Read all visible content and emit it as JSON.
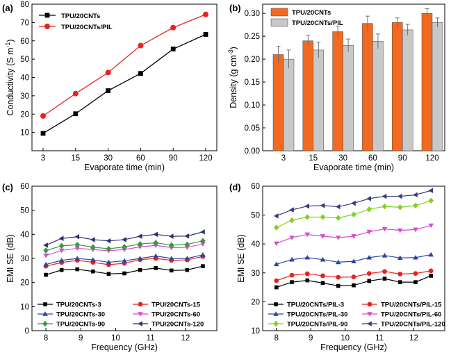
{
  "chart_data": [
    {
      "id": "a",
      "panel_label": "(a)",
      "type": "line",
      "categories": [
        "3",
        "15",
        "30",
        "60",
        "90",
        "120"
      ],
      "xlabel": "Evaporate time (min)",
      "ylabel": "Conductivity (S m",
      "ylabel_sup": "-1",
      "ylim": [
        0,
        80
      ],
      "yticks": [
        10,
        20,
        30,
        40,
        50,
        60,
        70,
        80
      ],
      "legend_position": "top-left",
      "series": [
        {
          "name": "TPU/20CNTs",
          "marker": "square",
          "color": "#000000",
          "values": [
            9.5,
            20.2,
            32.8,
            42.2,
            55.5,
            63.5
          ]
        },
        {
          "name": "TPU/20CNTs/PIL",
          "marker": "circle",
          "color": "#e8231f",
          "values": [
            19.0,
            31.2,
            42.7,
            57.4,
            67.2,
            74.4
          ]
        }
      ]
    },
    {
      "id": "b",
      "panel_label": "(b)",
      "type": "bar",
      "categories": [
        "3",
        "15",
        "30",
        "60",
        "90",
        "120"
      ],
      "xlabel": "Evaporate time (min)",
      "ylabel": "Density (g cm",
      "ylabel_sup": "-3",
      "ylim": [
        0,
        0.32
      ],
      "yticks": [
        "0.00",
        "0.05",
        "0.10",
        "0.15",
        "0.20",
        "0.25",
        "0.30"
      ],
      "legend_position": "top-left",
      "series": [
        {
          "name": "TPU/20CNTs",
          "color": "#f26a21",
          "values": [
            0.21,
            0.24,
            0.26,
            0.278,
            0.28,
            0.3
          ],
          "errors": [
            0.018,
            0.012,
            0.012,
            0.016,
            0.01,
            0.01
          ]
        },
        {
          "name": "TPU/20CNTs/PIL",
          "color": "#c8c8c8",
          "values": [
            0.2,
            0.22,
            0.23,
            0.239,
            0.264,
            0.28
          ],
          "errors": [
            0.02,
            0.017,
            0.014,
            0.016,
            0.012,
            0.01
          ]
        }
      ]
    },
    {
      "id": "c",
      "panel_label": "(c)",
      "type": "line",
      "x": [
        8.0,
        8.45,
        8.9,
        9.35,
        9.8,
        10.25,
        10.7,
        11.15,
        11.6,
        12.05,
        12.5
      ],
      "xticks": [
        "8",
        "9",
        "10",
        "11",
        "12"
      ],
      "xlabel": "Frequency (GHz)",
      "ylabel": "EMI SE (dB)",
      "xlim": [
        7.6,
        12.9
      ],
      "ylim": [
        0,
        60
      ],
      "yticks": [
        0,
        10,
        20,
        30,
        40,
        50,
        60
      ],
      "legend_position": "bottom",
      "series": [
        {
          "name": "TPU/20CNTs-3",
          "marker": "square",
          "color": "#000000",
          "values": [
            23.2,
            25.2,
            25.5,
            24.6,
            23.6,
            23.8,
            25.2,
            26.0,
            25.0,
            25.2,
            26.8
          ]
        },
        {
          "name": "TPU/20CNTs-15",
          "marker": "circle",
          "color": "#e8231f",
          "values": [
            26.8,
            28.3,
            29.2,
            28.4,
            27.4,
            28.0,
            29.5,
            30.0,
            29.2,
            29.4,
            30.8
          ]
        },
        {
          "name": "TPU/20CNTs-30",
          "marker": "triangle-up",
          "color": "#2946a0",
          "values": [
            27.5,
            29.2,
            30.0,
            29.4,
            28.4,
            29.0,
            30.0,
            31.0,
            30.0,
            30.0,
            31.5
          ]
        },
        {
          "name": "TPU/20CNTs-60",
          "marker": "triangle-down",
          "color": "#d050d0",
          "values": [
            31.2,
            33.3,
            34.2,
            33.7,
            33.2,
            33.7,
            34.8,
            35.4,
            34.5,
            34.6,
            36.0
          ]
        },
        {
          "name": "TPU/20CNTs-90",
          "marker": "diamond",
          "color": "#3a9a3a",
          "values": [
            33.3,
            35.2,
            35.7,
            34.7,
            34.0,
            34.8,
            36.0,
            36.5,
            35.5,
            35.8,
            37.3
          ]
        },
        {
          "name": "TPU/20CNTs-120",
          "marker": "triangle-left",
          "color": "#2e2e6e",
          "values": [
            35.5,
            38.3,
            39.0,
            37.8,
            37.3,
            37.8,
            39.2,
            40.0,
            39.2,
            39.3,
            41.0
          ]
        }
      ]
    },
    {
      "id": "d",
      "panel_label": "(d)",
      "type": "line",
      "x": [
        8.0,
        8.45,
        8.9,
        9.35,
        9.8,
        10.25,
        10.7,
        11.15,
        11.6,
        12.05,
        12.5
      ],
      "xticks": [
        "8",
        "9",
        "10",
        "11",
        "12"
      ],
      "xlabel": "Frequency (GHz)",
      "ylabel": "EMI SE (dB)",
      "xlim": [
        7.6,
        12.9
      ],
      "ylim": [
        10,
        60
      ],
      "yticks": [
        10,
        20,
        30,
        40,
        50,
        60
      ],
      "legend_position": "bottom",
      "series": [
        {
          "name": "TPU/20CNTs/PIL-3",
          "marker": "square",
          "color": "#000000",
          "values": [
            25.0,
            26.8,
            27.4,
            26.5,
            25.5,
            25.7,
            27.2,
            28.0,
            26.8,
            26.8,
            29.0
          ]
        },
        {
          "name": "TPU/20CNTs/PIL-15",
          "marker": "circle",
          "color": "#e8231f",
          "values": [
            27.3,
            29.2,
            29.7,
            29.0,
            28.5,
            28.6,
            29.8,
            30.5,
            29.6,
            29.8,
            30.7
          ]
        },
        {
          "name": "TPU/20CNTs/PIL-30",
          "marker": "triangle-up",
          "color": "#2946a0",
          "values": [
            33.0,
            34.6,
            35.3,
            34.6,
            33.7,
            34.0,
            35.3,
            36.0,
            35.2,
            35.3,
            36.3
          ]
        },
        {
          "name": "TPU/20CNTs/PIL-60",
          "marker": "triangle-down",
          "color": "#d050d0",
          "values": [
            40.2,
            42.2,
            43.3,
            42.7,
            42.2,
            42.7,
            44.2,
            45.2,
            44.7,
            45.0,
            46.4
          ]
        },
        {
          "name": "TPU/20CNTs/PIL-90",
          "marker": "diamond",
          "color": "#7ed321",
          "values": [
            45.7,
            48.2,
            49.3,
            49.3,
            49.0,
            50.2,
            52.0,
            53.0,
            52.7,
            53.3,
            55.0
          ]
        },
        {
          "name": "TPU/20CNTs/PIL-120",
          "marker": "triangle-left",
          "color": "#3a3a7a",
          "values": [
            49.7,
            51.8,
            53.1,
            53.3,
            52.9,
            54.1,
            55.7,
            56.5,
            56.5,
            57.0,
            58.5
          ]
        }
      ]
    }
  ]
}
